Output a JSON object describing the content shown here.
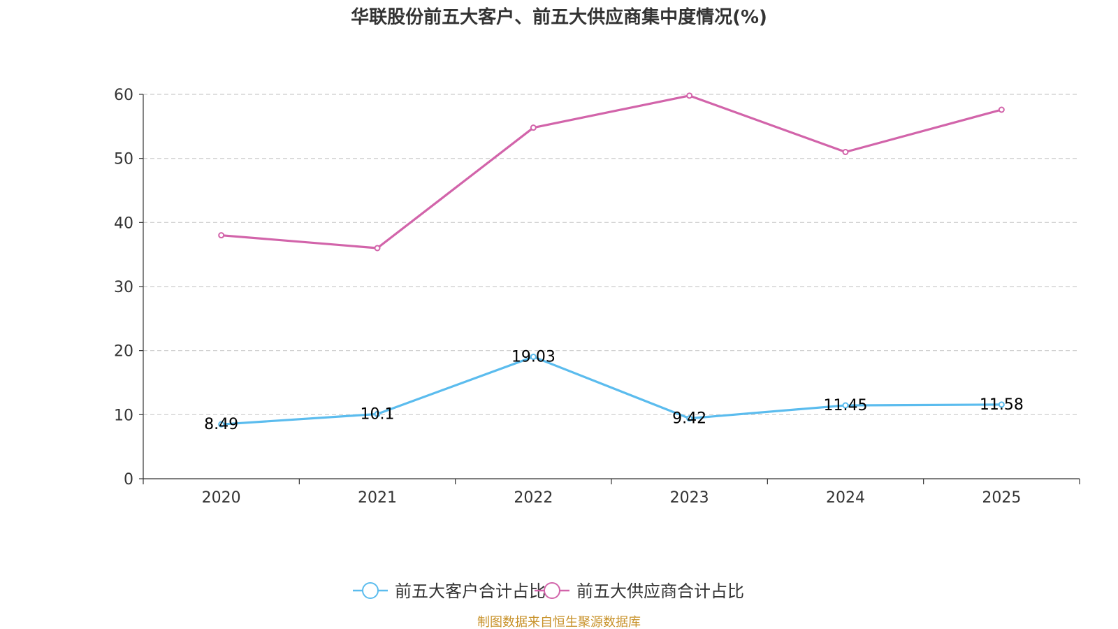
{
  "colors": {
    "customers": "#5bbcee",
    "suppliers": "#d264aa",
    "source": "#c8922a",
    "grid": "#cccccc",
    "axis": "#333333"
  },
  "source_text": "制图数据来自恒生聚源数据库",
  "chart_data": {
    "type": "line",
    "title": "华联股份前五大客户、前五大供应商集中度情况(%)",
    "xlabel": "",
    "ylabel": "",
    "categories": [
      "2020",
      "2021",
      "2022",
      "2023",
      "2024",
      "2025"
    ],
    "ylim": [
      0,
      60
    ],
    "yticks": [
      0,
      10,
      20,
      30,
      40,
      50,
      60
    ],
    "grid": true,
    "legend_position": "bottom",
    "series": [
      {
        "name": "前五大客户合计占比",
        "color": "#5bbcee",
        "show_labels": true,
        "values": [
          8.49,
          10.1,
          19.03,
          9.42,
          11.45,
          11.58
        ]
      },
      {
        "name": "前五大供应商合计占比",
        "color": "#d264aa",
        "show_labels": false,
        "values": [
          38.0,
          36.0,
          54.8,
          59.8,
          51.0,
          57.6
        ]
      }
    ]
  }
}
